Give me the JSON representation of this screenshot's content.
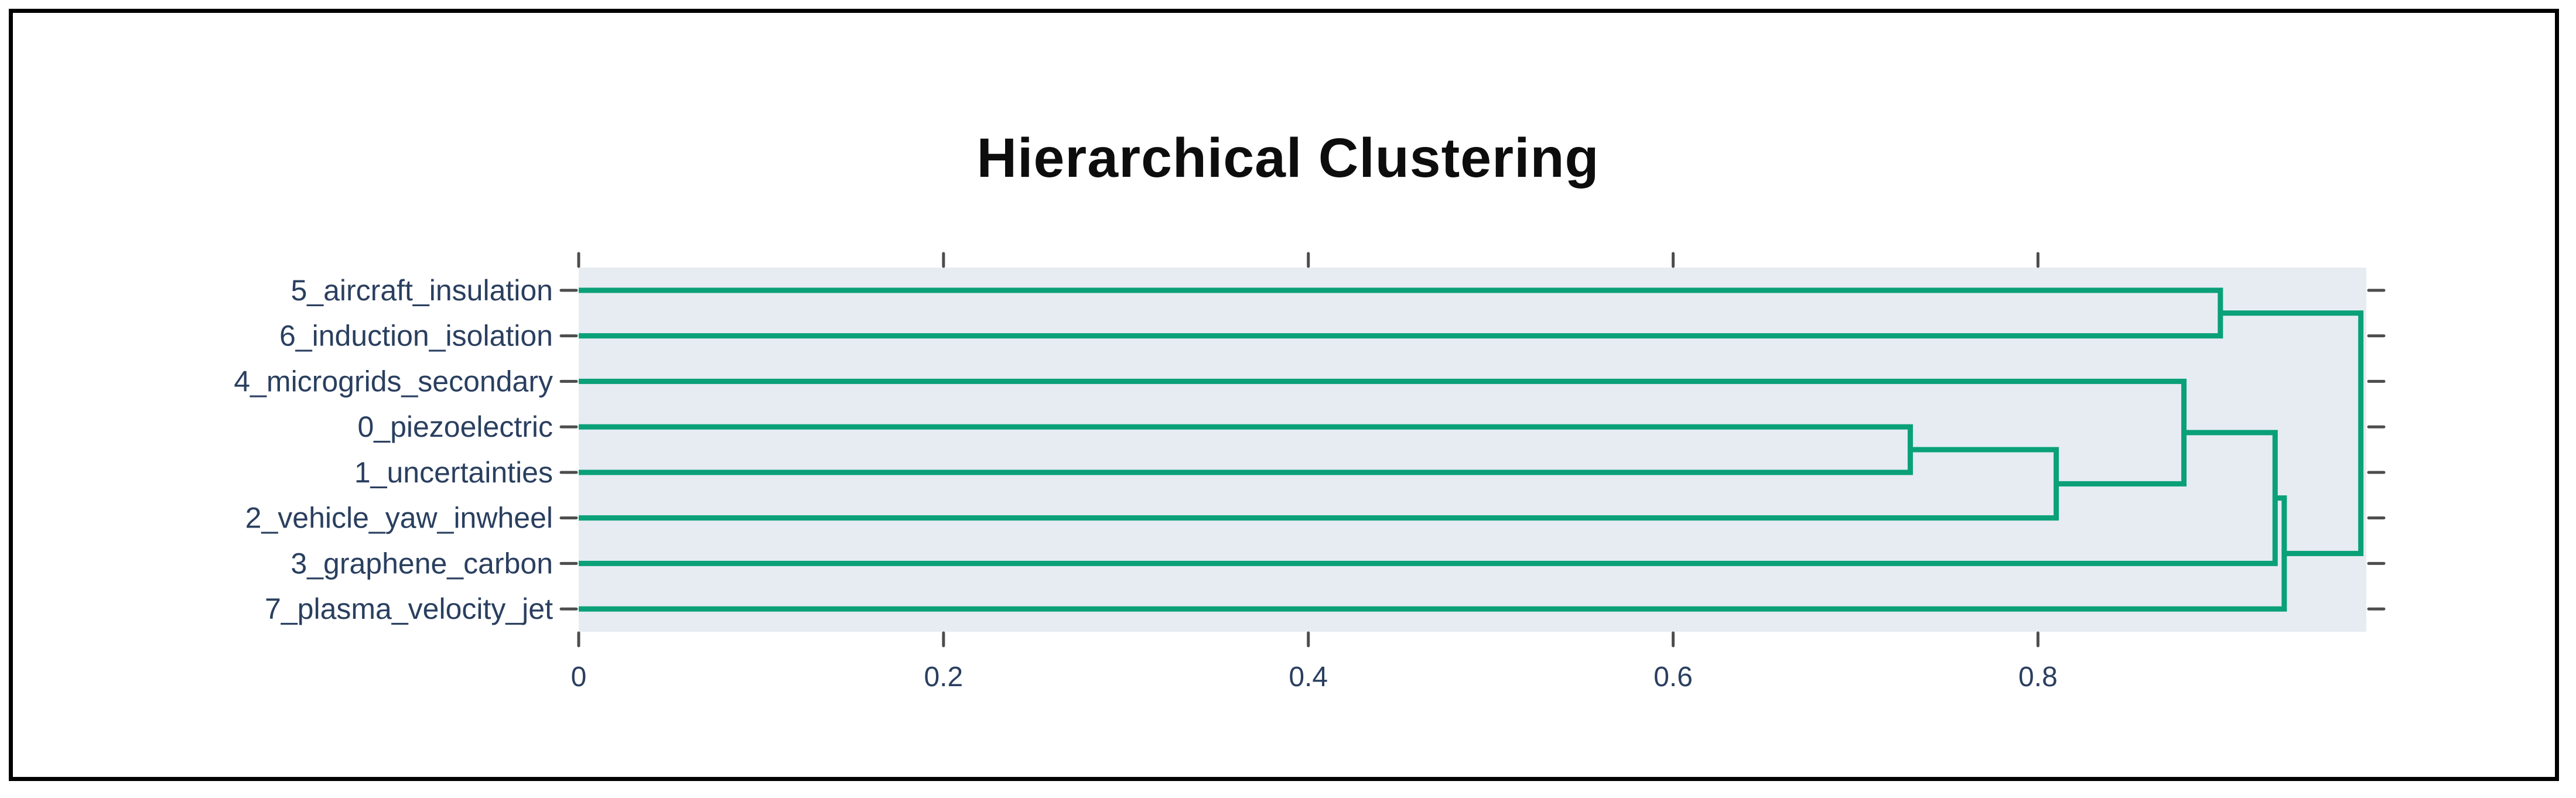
{
  "chart_data": {
    "type": "dendrogram",
    "title": "Hierarchical Clustering",
    "orientation": "horizontal-left-leaves",
    "leaves": [
      "5_aircraft_insulation",
      "6_induction_isolation",
      "4_microgrids_secondary",
      "0_piezoelectric",
      "1_uncertainties",
      "2_vehicle_yaw_inwheel",
      "3_graphene_carbon",
      "7_plasma_velocity_jet"
    ],
    "merges": [
      {
        "children": [
          "L3",
          "L4"
        ],
        "distance": 0.73
      },
      {
        "children": [
          "M0",
          "L5"
        ],
        "distance": 0.81
      },
      {
        "children": [
          "L2",
          "M1"
        ],
        "distance": 0.88
      },
      {
        "children": [
          "L0",
          "L1"
        ],
        "distance": 0.9
      },
      {
        "children": [
          "M2",
          "L6"
        ],
        "distance": 0.93
      },
      {
        "children": [
          "M4",
          "L7"
        ],
        "distance": 0.935
      },
      {
        "children": [
          "M3",
          "M5"
        ],
        "distance": 0.977
      }
    ],
    "x_ticks": [
      0,
      0.2,
      0.4,
      0.6,
      0.8
    ],
    "x_tick_labels": [
      "0",
      "0.2",
      "0.4",
      "0.6",
      "0.8"
    ],
    "xlim": [
      0,
      0.98
    ],
    "grid": false,
    "legend": false,
    "axis_mirror_ticks": true,
    "colors": {
      "line": "#0aa078",
      "plot_bg": "#e6ecf2",
      "label": "#2a3f5f",
      "tick": "#4d4d4d",
      "title": "#0d0d0d",
      "frame": "#000000"
    }
  }
}
